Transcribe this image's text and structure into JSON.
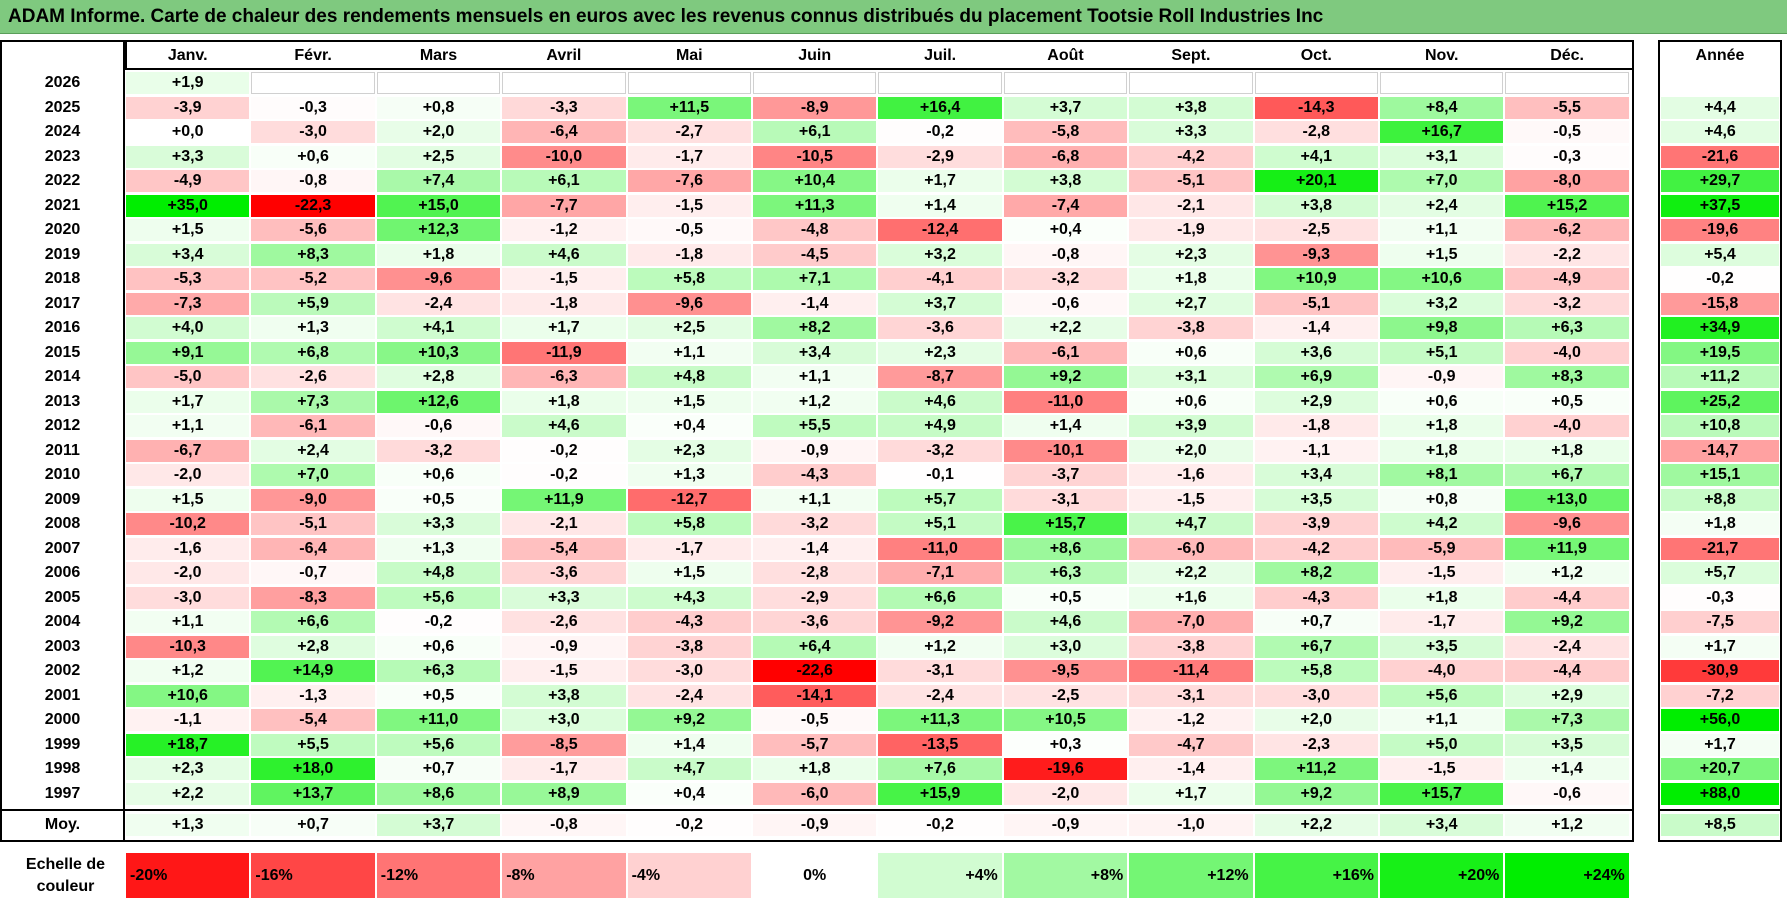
{
  "title": "ADAM Informe. Carte de chaleur des rendements mensuels en euros avec les revenus connus distribués du placement Tootsie Roll Industries Inc",
  "chart_data": {
    "type": "heatmap",
    "title": "ADAM Informe. Carte de chaleur des rendements mensuels en euros avec les revenus connus distribués du placement Tootsie Roll Industries Inc",
    "months": [
      "Janv.",
      "Févr.",
      "Mars",
      "Avril",
      "Mai",
      "Juin",
      "Juil.",
      "Août",
      "Sept.",
      "Oct.",
      "Nov.",
      "Déc."
    ],
    "year_col_label": "Année",
    "rows": [
      {
        "year": "2026",
        "values": [
          "+1,9",
          "",
          "",
          "",
          "",
          "",
          "",
          "",
          "",
          "",
          "",
          ""
        ],
        "annual": ""
      },
      {
        "year": "2025",
        "values": [
          "-3,9",
          "-0,3",
          "+0,8",
          "-3,3",
          "+11,5",
          "-8,9",
          "+16,4",
          "+3,7",
          "+3,8",
          "-14,3",
          "+8,4",
          "-5,5"
        ],
        "annual": "+4,4"
      },
      {
        "year": "2024",
        "values": [
          "+0,0",
          "-3,0",
          "+2,0",
          "-6,4",
          "-2,7",
          "+6,1",
          "-0,2",
          "-5,8",
          "+3,3",
          "-2,8",
          "+16,7",
          "-0,5"
        ],
        "annual": "+4,6"
      },
      {
        "year": "2023",
        "values": [
          "+3,3",
          "+0,6",
          "+2,5",
          "-10,0",
          "-1,7",
          "-10,5",
          "-2,9",
          "-6,8",
          "-4,2",
          "+4,1",
          "+3,1",
          "-0,3"
        ],
        "annual": "-21,6"
      },
      {
        "year": "2022",
        "values": [
          "-4,9",
          "-0,8",
          "+7,4",
          "+6,1",
          "-7,6",
          "+10,4",
          "+1,7",
          "+3,8",
          "-5,1",
          "+20,1",
          "+7,0",
          "-8,0"
        ],
        "annual": "+29,7"
      },
      {
        "year": "2021",
        "values": [
          "+35,0",
          "-22,3",
          "+15,0",
          "-7,7",
          "-1,5",
          "+11,3",
          "+1,4",
          "-7,4",
          "-2,1",
          "+3,8",
          "+2,4",
          "+15,2"
        ],
        "annual": "+37,5"
      },
      {
        "year": "2020",
        "values": [
          "+1,5",
          "-5,6",
          "+12,3",
          "-1,2",
          "-0,5",
          "-4,8",
          "-12,4",
          "+0,4",
          "-1,9",
          "-2,5",
          "+1,1",
          "-6,2"
        ],
        "annual": "-19,6"
      },
      {
        "year": "2019",
        "values": [
          "+3,4",
          "+8,3",
          "+1,8",
          "+4,6",
          "-1,8",
          "-4,5",
          "+3,2",
          "-0,8",
          "+2,3",
          "-9,3",
          "+1,5",
          "-2,2"
        ],
        "annual": "+5,4"
      },
      {
        "year": "2018",
        "values": [
          "-5,3",
          "-5,2",
          "-9,6",
          "-1,5",
          "+5,8",
          "+7,1",
          "-4,1",
          "-3,2",
          "+1,8",
          "+10,9",
          "+10,6",
          "-4,9"
        ],
        "annual": "-0,2"
      },
      {
        "year": "2017",
        "values": [
          "-7,3",
          "+5,9",
          "-2,4",
          "-1,8",
          "-9,6",
          "-1,4",
          "+3,7",
          "-0,6",
          "+2,7",
          "-5,1",
          "+3,2",
          "-3,2"
        ],
        "annual": "-15,8"
      },
      {
        "year": "2016",
        "values": [
          "+4,0",
          "+1,3",
          "+4,1",
          "+1,7",
          "+2,5",
          "+8,2",
          "-3,6",
          "+2,2",
          "-3,8",
          "-1,4",
          "+9,8",
          "+6,3"
        ],
        "annual": "+34,9"
      },
      {
        "year": "2015",
        "values": [
          "+9,1",
          "+6,8",
          "+10,3",
          "-11,9",
          "+1,1",
          "+3,4",
          "+2,3",
          "-6,1",
          "+0,6",
          "+3,6",
          "+5,1",
          "-4,0"
        ],
        "annual": "+19,5"
      },
      {
        "year": "2014",
        "values": [
          "-5,0",
          "-2,6",
          "+2,8",
          "-6,3",
          "+4,8",
          "+1,1",
          "-8,7",
          "+9,2",
          "+3,1",
          "+6,9",
          "-0,9",
          "+8,3"
        ],
        "annual": "+11,2"
      },
      {
        "year": "2013",
        "values": [
          "+1,7",
          "+7,3",
          "+12,6",
          "+1,8",
          "+1,5",
          "+1,2",
          "+4,6",
          "-11,0",
          "+0,6",
          "+2,9",
          "+0,6",
          "+0,5"
        ],
        "annual": "+25,2"
      },
      {
        "year": "2012",
        "values": [
          "+1,1",
          "-6,1",
          "-0,6",
          "+4,6",
          "+0,4",
          "+5,5",
          "+4,9",
          "+1,4",
          "+3,9",
          "-1,8",
          "+1,8",
          "-4,0"
        ],
        "annual": "+10,8"
      },
      {
        "year": "2011",
        "values": [
          "-6,7",
          "+2,4",
          "-3,2",
          "-0,2",
          "+2,3",
          "-0,9",
          "-3,2",
          "-10,1",
          "+2,0",
          "-1,1",
          "+1,8",
          "+1,8"
        ],
        "annual": "-14,7"
      },
      {
        "year": "2010",
        "values": [
          "-2,0",
          "+7,0",
          "+0,6",
          "-0,2",
          "+1,3",
          "-4,3",
          "-0,1",
          "-3,7",
          "-1,6",
          "+3,4",
          "+8,1",
          "+6,7"
        ],
        "annual": "+15,1"
      },
      {
        "year": "2009",
        "values": [
          "+1,5",
          "-9,0",
          "+0,5",
          "+11,9",
          "-12,7",
          "+1,1",
          "+5,7",
          "-3,1",
          "-1,5",
          "+3,5",
          "+0,8",
          "+13,0"
        ],
        "annual": "+8,8"
      },
      {
        "year": "2008",
        "values": [
          "-10,2",
          "-5,1",
          "+3,3",
          "-2,1",
          "+5,8",
          "-3,2",
          "+5,1",
          "+15,7",
          "+4,7",
          "-3,9",
          "+4,2",
          "-9,6"
        ],
        "annual": "+1,8"
      },
      {
        "year": "2007",
        "values": [
          "-1,6",
          "-6,4",
          "+1,3",
          "-5,4",
          "-1,7",
          "-1,4",
          "-11,0",
          "+8,6",
          "-6,0",
          "-4,2",
          "-5,9",
          "+11,9"
        ],
        "annual": "-21,7"
      },
      {
        "year": "2006",
        "values": [
          "-2,0",
          "-0,7",
          "+4,8",
          "-3,6",
          "+1,5",
          "-2,8",
          "-7,1",
          "+6,3",
          "+2,2",
          "+8,2",
          "-1,5",
          "+1,2"
        ],
        "annual": "+5,7"
      },
      {
        "year": "2005",
        "values": [
          "-3,0",
          "-8,3",
          "+5,6",
          "+3,3",
          "+4,3",
          "-2,9",
          "+6,6",
          "+0,5",
          "+1,6",
          "-4,3",
          "+1,8",
          "-4,4"
        ],
        "annual": "-0,3"
      },
      {
        "year": "2004",
        "values": [
          "+1,1",
          "+6,6",
          "-0,2",
          "-2,6",
          "-4,3",
          "-3,6",
          "-9,2",
          "+4,6",
          "-7,0",
          "+0,7",
          "-1,7",
          "+9,2"
        ],
        "annual": "-7,5"
      },
      {
        "year": "2003",
        "values": [
          "-10,3",
          "+2,8",
          "+0,6",
          "-0,9",
          "-3,8",
          "+6,4",
          "+1,2",
          "+3,0",
          "-3,8",
          "+6,7",
          "+3,5",
          "-2,4"
        ],
        "annual": "+1,7"
      },
      {
        "year": "2002",
        "values": [
          "+1,2",
          "+14,9",
          "+6,3",
          "-1,5",
          "-3,0",
          "-22,6",
          "-3,1",
          "-9,5",
          "-11,4",
          "+5,8",
          "-4,0",
          "-4,4"
        ],
        "annual": "-30,9"
      },
      {
        "year": "2001",
        "values": [
          "+10,6",
          "-1,3",
          "+0,5",
          "+3,8",
          "-2,4",
          "-14,1",
          "-2,4",
          "-2,5",
          "-3,1",
          "-3,0",
          "+5,6",
          "+2,9"
        ],
        "annual": "-7,2"
      },
      {
        "year": "2000",
        "values": [
          "-1,1",
          "-5,4",
          "+11,0",
          "+3,0",
          "+9,2",
          "-0,5",
          "+11,3",
          "+10,5",
          "-1,2",
          "+2,0",
          "+1,1",
          "+7,3"
        ],
        "annual": "+56,0"
      },
      {
        "year": "1999",
        "values": [
          "+18,7",
          "+5,5",
          "+5,6",
          "-8,5",
          "+1,4",
          "-5,7",
          "-13,5",
          "+0,3",
          "-4,7",
          "-2,3",
          "+5,0",
          "+3,5"
        ],
        "annual": "+1,7"
      },
      {
        "year": "1998",
        "values": [
          "+2,3",
          "+18,0",
          "+0,7",
          "-1,7",
          "+4,7",
          "+1,8",
          "+7,6",
          "-19,6",
          "-1,4",
          "+11,2",
          "-1,5",
          "+1,4"
        ],
        "annual": "+20,7"
      },
      {
        "year": "1997",
        "values": [
          "+2,2",
          "+13,7",
          "+8,6",
          "+8,9",
          "+0,4",
          "-6,0",
          "+15,9",
          "-2,0",
          "+1,7",
          "+9,2",
          "+15,7",
          "-0,6"
        ],
        "annual": "+88,0"
      }
    ],
    "average": {
      "label": "Moy.",
      "values": [
        "+1,3",
        "+0,7",
        "+3,7",
        "-0,8",
        "-0,2",
        "-0,9",
        "-0,2",
        "-0,9",
        "-1,0",
        "+2,2",
        "+3,4",
        "+1,2"
      ],
      "annual": "+8,5"
    },
    "legend": {
      "label_line1": "Echelle de",
      "label_line2": "couleur",
      "items": [
        "-20%",
        "-16%",
        "-12%",
        "-8%",
        "-4%",
        "0%",
        "+4%",
        "+8%",
        "+12%",
        "+16%",
        "+20%",
        "+24%"
      ],
      "values": [
        -20,
        -16,
        -12,
        -8,
        -4,
        0,
        4,
        8,
        12,
        16,
        20,
        24
      ]
    },
    "colors": {
      "negative": "#ff0000",
      "neutral": "#ffffff",
      "positive": "#00ee00"
    }
  }
}
